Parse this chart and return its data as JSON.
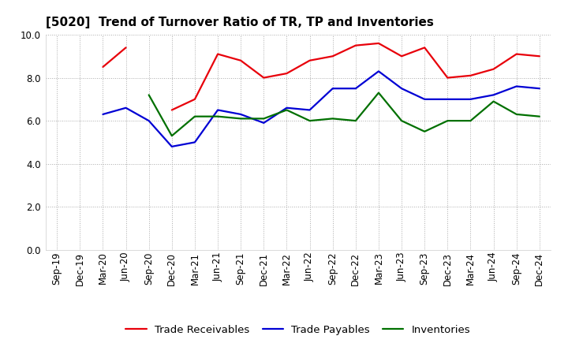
{
  "title": "[5020]  Trend of Turnover Ratio of TR, TP and Inventories",
  "x_labels": [
    "Sep-19",
    "Dec-19",
    "Mar-20",
    "Jun-20",
    "Sep-20",
    "Dec-20",
    "Mar-21",
    "Jun-21",
    "Sep-21",
    "Dec-21",
    "Mar-22",
    "Jun-22",
    "Sep-22",
    "Dec-22",
    "Mar-23",
    "Jun-23",
    "Sep-23",
    "Dec-23",
    "Mar-24",
    "Jun-24",
    "Sep-24",
    "Dec-24"
  ],
  "trade_receivables": [
    null,
    null,
    8.5,
    9.4,
    null,
    6.5,
    7.0,
    9.1,
    8.8,
    8.0,
    8.2,
    8.8,
    9.0,
    9.5,
    9.6,
    9.0,
    9.4,
    8.0,
    8.1,
    8.4,
    9.1,
    9.0
  ],
  "trade_payables": [
    null,
    null,
    6.3,
    6.6,
    6.0,
    4.8,
    5.0,
    6.5,
    6.3,
    5.9,
    6.6,
    6.5,
    7.5,
    7.5,
    8.3,
    7.5,
    7.0,
    7.0,
    7.0,
    7.2,
    7.6,
    7.5
  ],
  "inventories": [
    null,
    null,
    null,
    null,
    7.2,
    5.3,
    6.2,
    6.2,
    6.1,
    6.1,
    6.5,
    6.0,
    6.1,
    6.0,
    7.3,
    6.0,
    5.5,
    6.0,
    6.0,
    6.9,
    6.3,
    6.2
  ],
  "ylim": [
    0.0,
    10.0
  ],
  "yticks": [
    0.0,
    2.0,
    4.0,
    6.0,
    8.0,
    10.0
  ],
  "color_tr": "#e8000a",
  "color_tp": "#0000d4",
  "color_inv": "#007000",
  "legend_labels": [
    "Trade Receivables",
    "Trade Payables",
    "Inventories"
  ],
  "title_fontsize": 11,
  "tick_fontsize": 8.5,
  "legend_fontsize": 9.5,
  "linewidth": 1.6
}
